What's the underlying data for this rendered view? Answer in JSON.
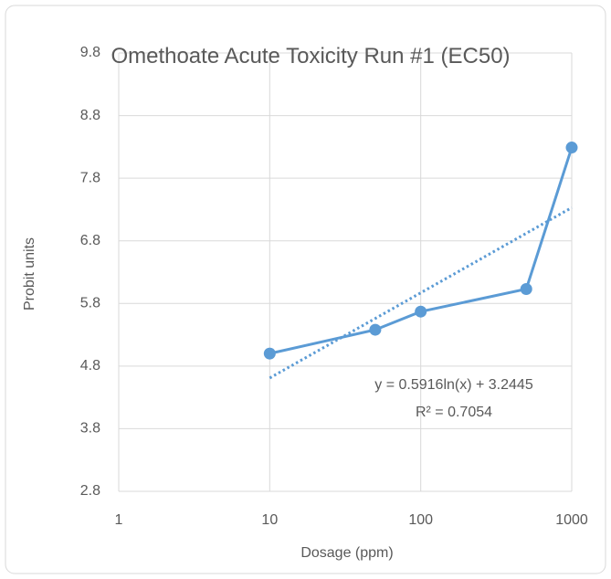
{
  "chart_data": {
    "type": "line",
    "title": "Omethoate Acute Toxicity Run #1 (EC50)",
    "x_label": "Dosage (ppm)",
    "y_label": "Probit units",
    "x": [
      10,
      50,
      100,
      500,
      1000
    ],
    "series": [
      {
        "name": "Probit units",
        "color": "#5b9bd5",
        "values": [
          5.0,
          5.38,
          5.67,
          6.03,
          8.29
        ]
      }
    ],
    "trendline": {
      "x": [
        10,
        1000
      ],
      "values": [
        4.61,
        7.33
      ],
      "color": "#5b9bd5",
      "style": "dotted"
    },
    "annotations": [
      "y = 0.5916ln(x) + 3.2445",
      "R² = 0.7054"
    ],
    "x_log_scale": true,
    "xlim": [
      1,
      1000
    ],
    "xticks": [
      1,
      10,
      100,
      1000
    ],
    "ylim": [
      2.8,
      9.8
    ],
    "yticks": [
      2.8,
      3.8,
      4.8,
      5.8,
      6.8,
      7.8,
      8.8,
      9.8
    ],
    "grid": true
  }
}
